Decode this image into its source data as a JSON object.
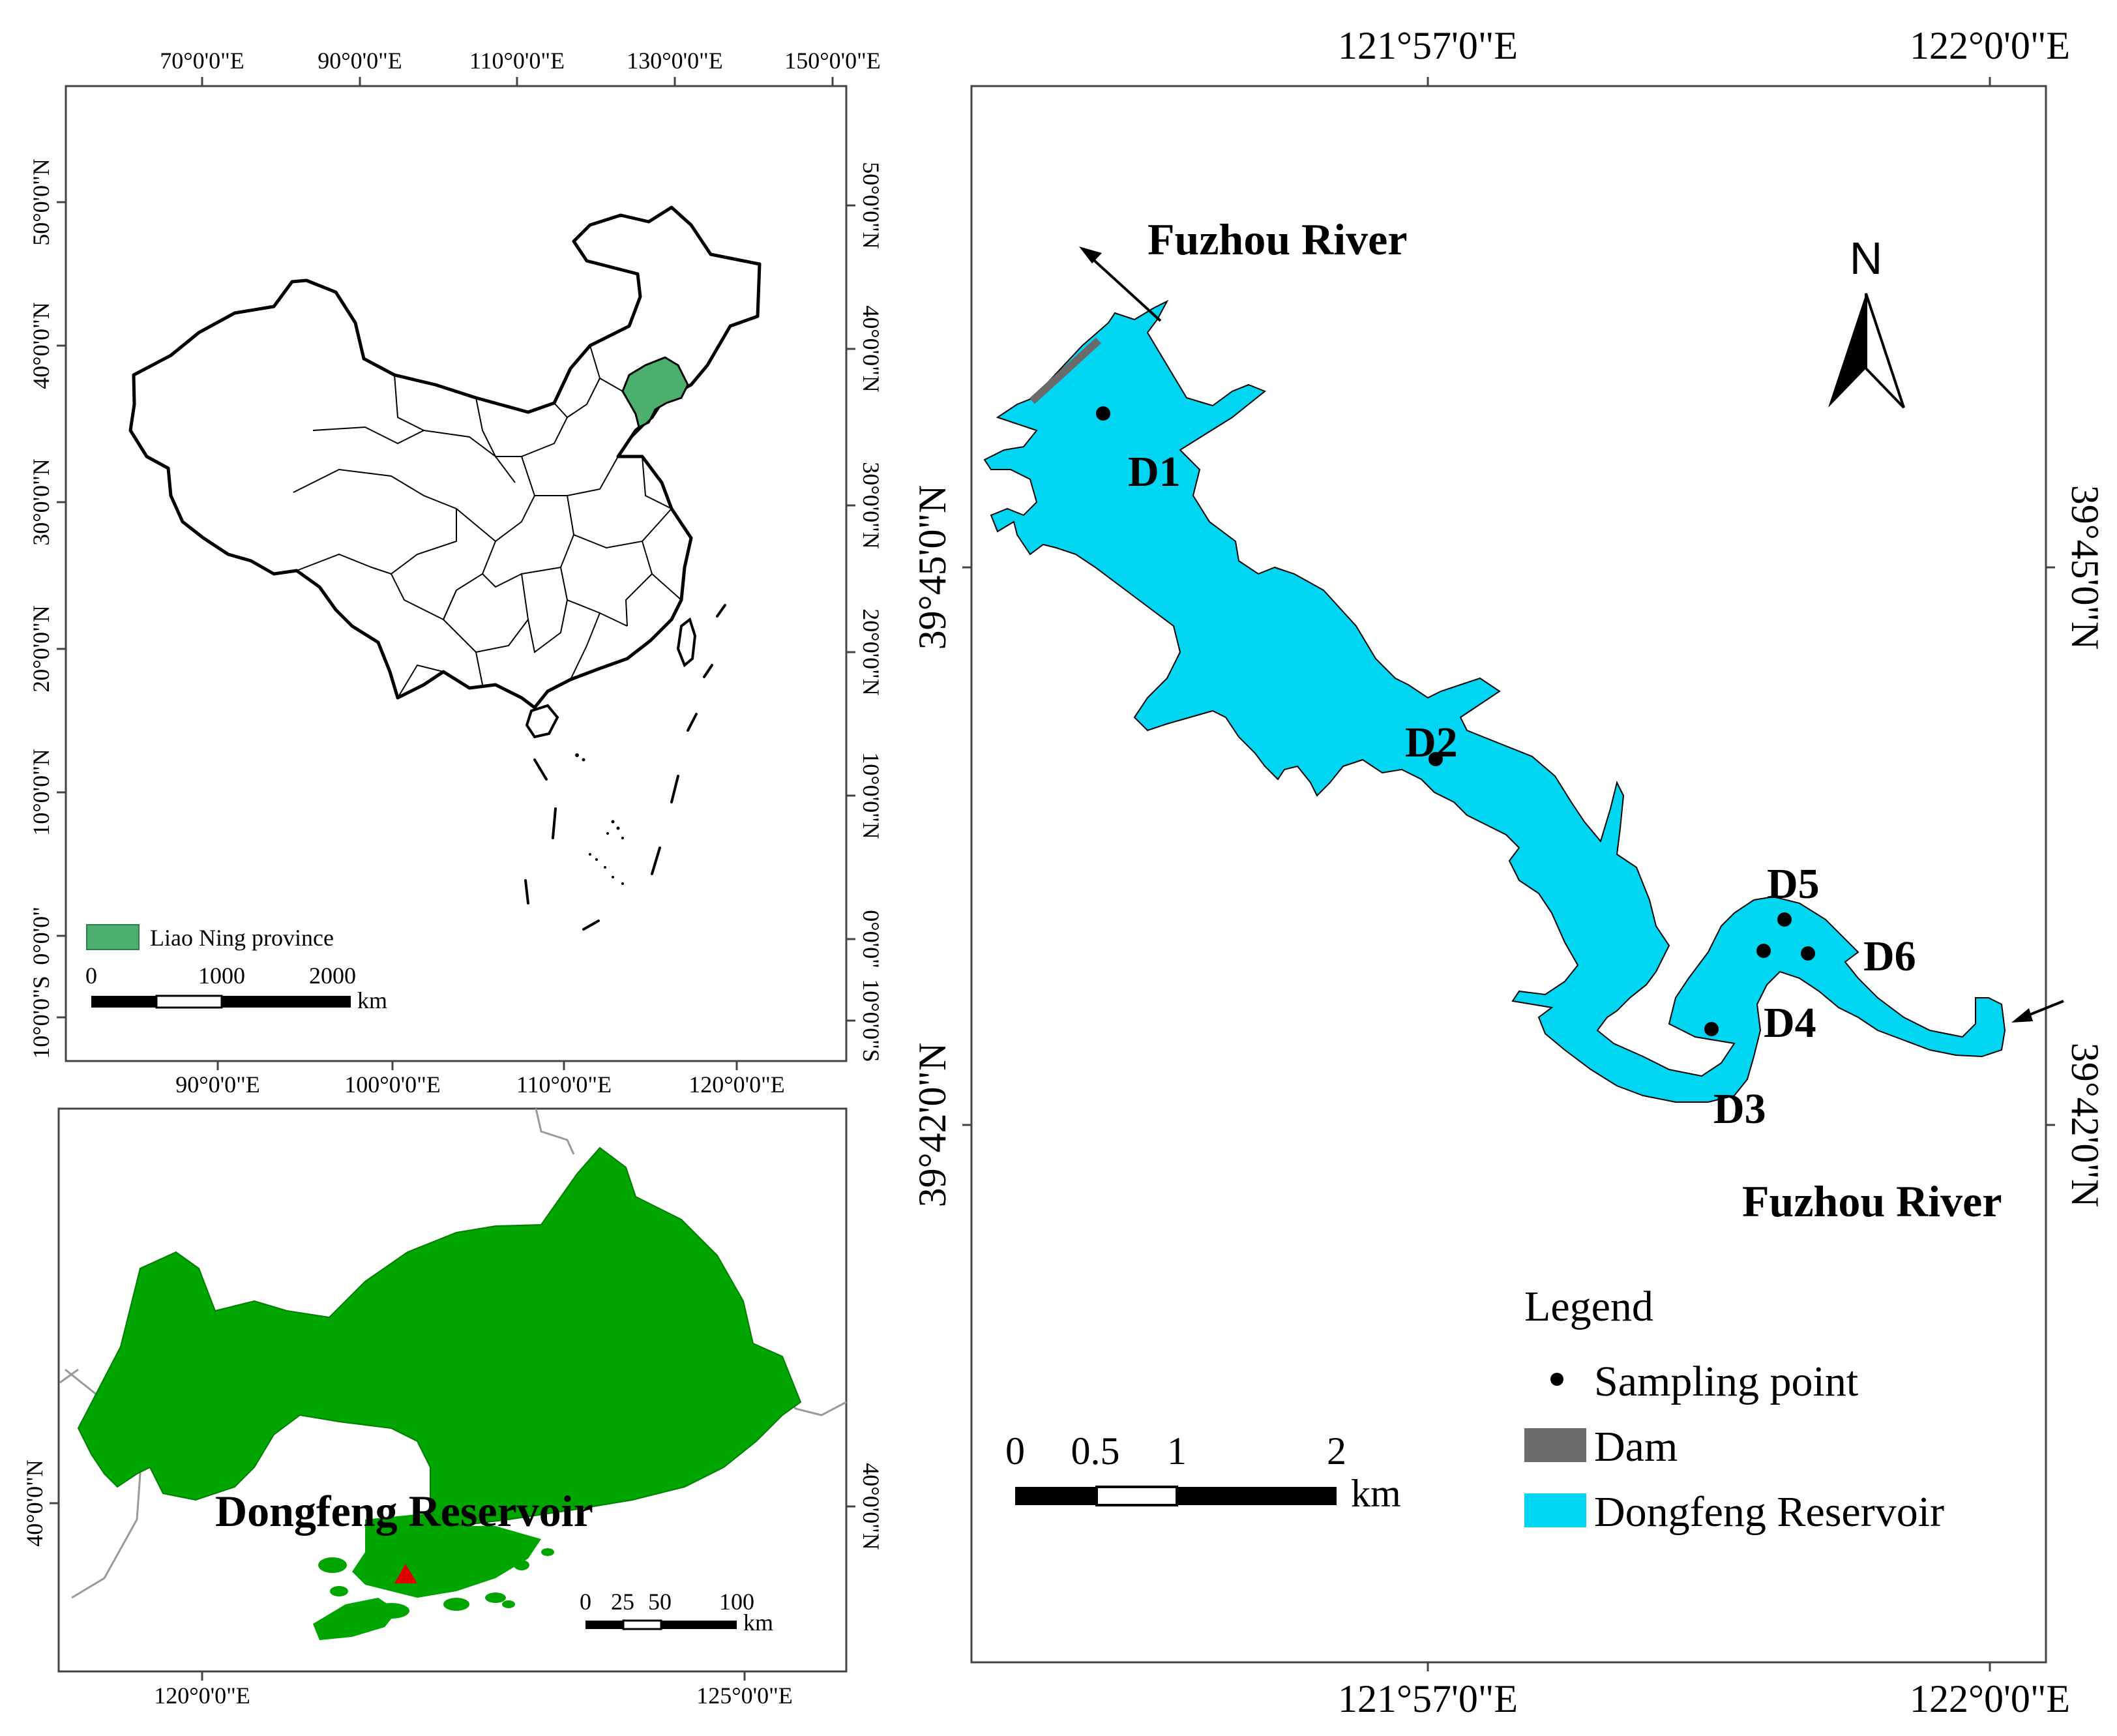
{
  "colors": {
    "reservoir": "#00d6f2",
    "liaoning_inset": "#4caf6e",
    "liaoning_region": "#00a500",
    "dam": "#6b6b6b",
    "reservoir_marker": "#e00000"
  },
  "china_panel": {
    "top_ticks": [
      "70°0'0\"E",
      "90°0'0\"E",
      "110°0'0\"E",
      "130°0'0\"E",
      "150°0'0\"E"
    ],
    "bottom_ticks": [
      "90°0'0\"E",
      "100°0'0\"E",
      "110°0'0\"E",
      "120°0'0\"E"
    ],
    "left_ticks": [
      "50°0'0\"N",
      "40°0'0\"N",
      "30°0'0\"N",
      "20°0'0\"N",
      "10°0'0\"N",
      "0°0'0\"",
      "10°0'0\"S"
    ],
    "right_ticks": [
      "50°0'0\"N",
      "40°0'0\"N",
      "30°0'0\"N",
      "20°0'0\"N",
      "10°0'0\"N",
      "0°0'0\"",
      "10°0'0\"S"
    ],
    "legend_label": "Liao Ning province",
    "scale_labels": [
      "0",
      "1000",
      "2000"
    ],
    "scale_unit": "km"
  },
  "liaoning_panel": {
    "bottom_ticks": [
      "120°0'0\"E",
      "125°0'0\"E"
    ],
    "left_tick": "40°0'0\"N",
    "right_tick": "40°0'0\"N",
    "reservoir_label": "Dongfeng Reservoir",
    "scale_labels": [
      "0",
      "25",
      "50",
      "100"
    ],
    "scale_unit": "km"
  },
  "reservoir_panel": {
    "top_ticks": [
      "121°57'0\"E",
      "122°0'0\"E"
    ],
    "bottom_ticks": [
      "121°57'0\"E",
      "122°0'0\"E"
    ],
    "left_ticks": [
      "39°45'0\"N",
      "39°42'0\"N"
    ],
    "right_ticks": [
      "39°45'0\"N",
      "39°42'0\"N"
    ],
    "river_top": "Fuzhou River",
    "river_bottom": "Fuzhou River",
    "north_label": "N",
    "sites": [
      "D1",
      "D2",
      "D3",
      "D4",
      "D5",
      "D6"
    ],
    "legend": {
      "title": "Legend",
      "sampling_point": "Sampling point",
      "dam": "Dam",
      "reservoir": "Dongfeng Reservoir"
    },
    "scale_labels": [
      "0",
      "0.5",
      "1",
      "2"
    ],
    "scale_unit": "km"
  }
}
